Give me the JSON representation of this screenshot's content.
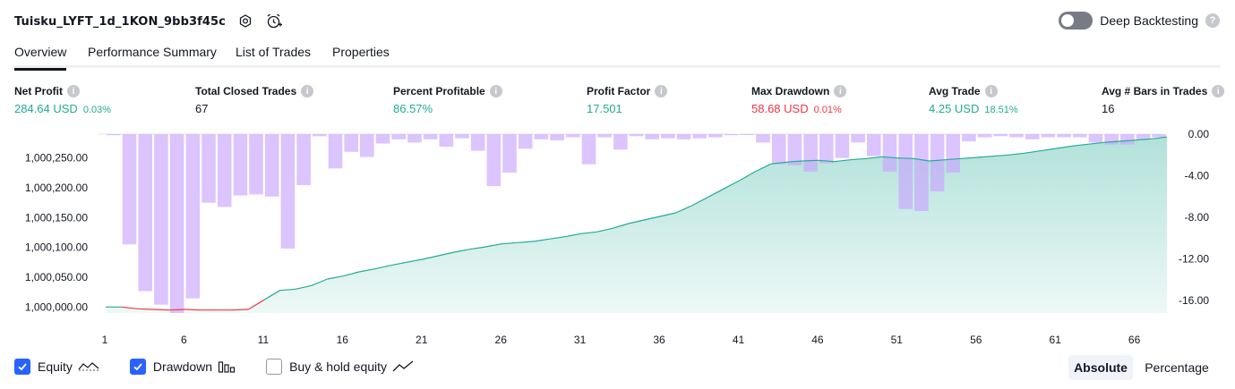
{
  "header": {
    "strategy_name": "Tuisku_LYFT_1d_1KON_9bb3f45c",
    "settings_icon": "settings-icon",
    "alert_icon": "alarm-plus-icon"
  },
  "deep_backtesting": {
    "label": "Deep Backtesting",
    "enabled": false,
    "help": "?"
  },
  "tabs": [
    {
      "label": "Overview",
      "active": true
    },
    {
      "label": "Performance Summary",
      "active": false
    },
    {
      "label": "List of Trades",
      "active": false
    },
    {
      "label": "Properties",
      "active": false
    }
  ],
  "metrics": [
    {
      "label": "Net Profit",
      "value": "284.64 USD",
      "pct": "0.03%",
      "color": "#22ab94"
    },
    {
      "label": "Total Closed Trades",
      "value": "67",
      "pct": "",
      "color": "#131722"
    },
    {
      "label": "Percent Profitable",
      "value": "86.57%",
      "pct": "",
      "color": "#22ab94"
    },
    {
      "label": "Profit Factor",
      "value": "17.501",
      "pct": "",
      "color": "#22ab94"
    },
    {
      "label": "Max Drawdown",
      "value": "58.68 USD",
      "pct": "0.01%",
      "color": "#f23645"
    },
    {
      "label": "Avg Trade",
      "value": "4.25 USD",
      "pct": "18.51%",
      "color": "#22ab94"
    },
    {
      "label": "Avg # Bars in Trades",
      "value": "16",
      "pct": "",
      "color": "#131722"
    }
  ],
  "info_glyph": "i",
  "chart_data": {
    "type": "area",
    "x_ticks": [
      "1",
      "6",
      "11",
      "16",
      "21",
      "26",
      "31",
      "36",
      "41",
      "46",
      "51",
      "56",
      "61",
      "66"
    ],
    "y_left_ticks": [
      "1,000,000.00",
      "1,000,050.00",
      "1,000,100.00",
      "1,000,150.00",
      "1,000,200.00",
      "1,000,250.00"
    ],
    "y_right_ticks": [
      "0.00",
      "-4.00",
      "-8.00",
      "-12.00",
      "-16.00"
    ],
    "equity_ylim": [
      999990,
      1000290
    ],
    "drawdown_ylim": [
      -17.2,
      0
    ],
    "x_range": [
      1,
      68
    ],
    "equity": [
      [
        1,
        1000000
      ],
      [
        2,
        1000000
      ],
      [
        3,
        999997
      ],
      [
        4,
        999996
      ],
      [
        5,
        999995
      ],
      [
        6,
        999996
      ],
      [
        7,
        999995
      ],
      [
        8,
        999995
      ],
      [
        9,
        999995
      ],
      [
        10,
        999996
      ],
      [
        11,
        1000012
      ],
      [
        12,
        1000028
      ],
      [
        13,
        1000030
      ],
      [
        14,
        1000036
      ],
      [
        15,
        1000047
      ],
      [
        16,
        1000052
      ],
      [
        17,
        1000059
      ],
      [
        18,
        1000064
      ],
      [
        19,
        1000070
      ],
      [
        20,
        1000075
      ],
      [
        21,
        1000080
      ],
      [
        22,
        1000086
      ],
      [
        23,
        1000092
      ],
      [
        24,
        1000097
      ],
      [
        25,
        1000101
      ],
      [
        26,
        1000106
      ],
      [
        27,
        1000108
      ],
      [
        28,
        1000110
      ],
      [
        29,
        1000114
      ],
      [
        30,
        1000118
      ],
      [
        31,
        1000123
      ],
      [
        32,
        1000126
      ],
      [
        33,
        1000132
      ],
      [
        34,
        1000140
      ],
      [
        35,
        1000146
      ],
      [
        36,
        1000152
      ],
      [
        37,
        1000158
      ],
      [
        38,
        1000170
      ],
      [
        39,
        1000184
      ],
      [
        40,
        1000198
      ],
      [
        41,
        1000212
      ],
      [
        42,
        1000227
      ],
      [
        43,
        1000240
      ],
      [
        44,
        1000243
      ],
      [
        45,
        1000245
      ],
      [
        46,
        1000246
      ],
      [
        47,
        1000244
      ],
      [
        48,
        1000247
      ],
      [
        49,
        1000249
      ],
      [
        50,
        1000252
      ],
      [
        51,
        1000250
      ],
      [
        52,
        1000249
      ],
      [
        53,
        1000245
      ],
      [
        54,
        1000247
      ],
      [
        55,
        1000249
      ],
      [
        56,
        1000251
      ],
      [
        57,
        1000253
      ],
      [
        58,
        1000255
      ],
      [
        59,
        1000258
      ],
      [
        60,
        1000262
      ],
      [
        61,
        1000266
      ],
      [
        62,
        1000270
      ],
      [
        63,
        1000273
      ],
      [
        64,
        1000276
      ],
      [
        65,
        1000278
      ],
      [
        66,
        1000280
      ],
      [
        67,
        1000282
      ],
      [
        68,
        1000285
      ]
    ],
    "drawdown": [
      -0.1,
      -10.6,
      -15.1,
      -16.4,
      -17.2,
      -15.8,
      -6.6,
      -7.0,
      -5.9,
      -5.8,
      -6.0,
      -11.0,
      -4.9,
      -0.2,
      -3.3,
      -1.7,
      -2.2,
      -0.9,
      -0.5,
      -0.8,
      -0.5,
      -1.2,
      -0.4,
      -1.6,
      -5.0,
      -3.7,
      -1.4,
      -0.5,
      -0.6,
      -0.3,
      -2.9,
      -0.3,
      -1.5,
      -0.2,
      -0.5,
      -0.4,
      -0.5,
      -0.4,
      -0.3,
      -0.1,
      -0.0,
      -0.8,
      -2.9,
      -3.0,
      -3.6,
      -2.8,
      -2.3,
      -0.8,
      -2.1,
      -3.6,
      -7.2,
      -7.4,
      -5.5,
      -3.7,
      -0.7,
      -0.3,
      -0.2,
      -0.3,
      -0.5,
      -0.3,
      -0.3,
      -0.3,
      -0.8,
      -1.0,
      -1.0,
      -0.5,
      -0.3
    ]
  },
  "legend": [
    {
      "label": "Equity",
      "checked": true,
      "icon": "equity-line-icon"
    },
    {
      "label": "Drawdown",
      "checked": true,
      "icon": "drawdown-bars-icon"
    },
    {
      "label": "Buy & hold equity",
      "checked": false,
      "icon": "buy-hold-line-icon"
    }
  ],
  "modes": [
    {
      "label": "Absolute",
      "active": true
    },
    {
      "label": "Percentage",
      "active": false
    }
  ],
  "colors": {
    "equity_line": "#22ab94",
    "equity_fill": "#22ab94",
    "equity_loss_line": "#f23645",
    "drawdown_bar": "#c9a5ff",
    "accent": "#2962ff"
  }
}
